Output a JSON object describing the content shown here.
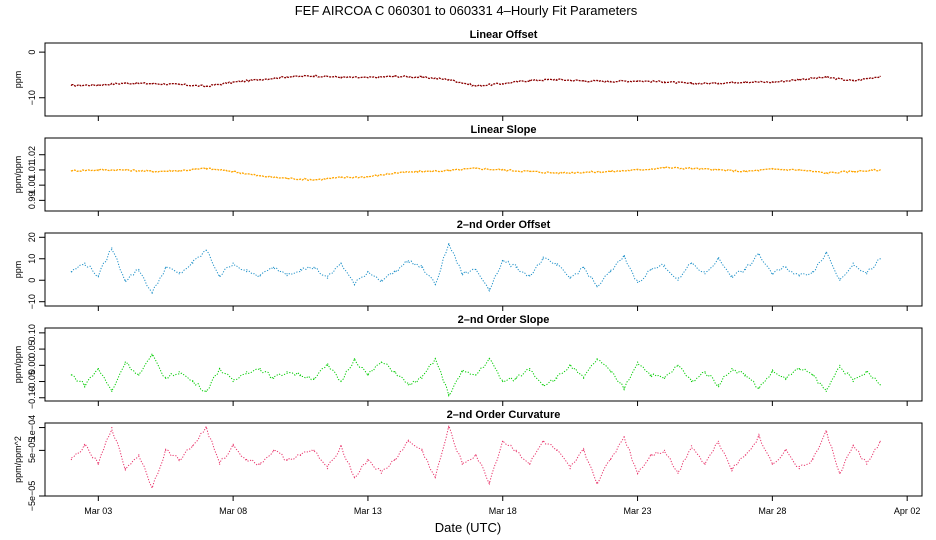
{
  "title": "FEF   AIRCOA C   060301 to 060331   4–Hourly Fit Parameters",
  "xlabel": "Date (UTC)",
  "x_ticks": [
    "Mar 03",
    "Mar 08",
    "Mar 13",
    "Mar 18",
    "Mar 23",
    "Mar 28",
    "Apr 02"
  ],
  "chart_data": [
    {
      "type": "line",
      "title": "Linear Offset",
      "ylabel": "ppm",
      "color": "#8b0000",
      "ylim": [
        -14,
        2
      ],
      "yticks": [
        0,
        -10
      ],
      "ytick_labels": [
        "0",
        "−10"
      ],
      "x_range": [
        "2006-03-01",
        "2006-04-02"
      ],
      "series": [
        {
          "x": [
            "2006-03-02",
            "2006-03-03",
            "2006-03-04",
            "2006-03-05",
            "2006-03-06",
            "2006-03-07",
            "2006-03-08",
            "2006-03-09",
            "2006-03-10",
            "2006-03-11",
            "2006-03-12",
            "2006-03-13",
            "2006-03-14",
            "2006-03-15",
            "2006-03-16",
            "2006-03-17",
            "2006-03-18",
            "2006-03-19",
            "2006-03-20",
            "2006-03-21",
            "2006-03-22",
            "2006-03-23",
            "2006-03-24",
            "2006-03-25",
            "2006-03-26",
            "2006-03-27",
            "2006-03-28",
            "2006-03-29",
            "2006-03-30",
            "2006-03-31",
            "2006-04-01"
          ],
          "values": [
            -7.3,
            -7.2,
            -6.8,
            -6.9,
            -7.1,
            -7.5,
            -6.6,
            -6.0,
            -5.4,
            -5.2,
            -5.5,
            -5.6,
            -5.3,
            -5.5,
            -6.0,
            -7.4,
            -6.9,
            -6.2,
            -6.0,
            -6.3,
            -6.4,
            -6.3,
            -6.5,
            -6.9,
            -6.8,
            -6.5,
            -6.6,
            -6.0,
            -5.5,
            -6.3,
            -5.3
          ]
        }
      ]
    },
    {
      "type": "line",
      "title": "Linear Slope",
      "ylabel": "ppm/ppm",
      "color": "#ffa500",
      "ylim": [
        0.983,
        1.031
      ],
      "yticks": [
        0.99,
        1.0,
        1.01,
        1.02
      ],
      "ytick_labels": [
        "0.99",
        "1.00",
        "1.01",
        "1.02"
      ],
      "x_range": [
        "2006-03-01",
        "2006-04-02"
      ],
      "series": [
        {
          "x": [
            "2006-03-02",
            "2006-03-03",
            "2006-03-04",
            "2006-03-05",
            "2006-03-06",
            "2006-03-07",
            "2006-03-08",
            "2006-03-09",
            "2006-03-10",
            "2006-03-11",
            "2006-03-12",
            "2006-03-13",
            "2006-03-14",
            "2006-03-15",
            "2006-03-16",
            "2006-03-17",
            "2006-03-18",
            "2006-03-19",
            "2006-03-20",
            "2006-03-21",
            "2006-03-22",
            "2006-03-23",
            "2006-03-24",
            "2006-03-25",
            "2006-03-26",
            "2006-03-27",
            "2006-03-28",
            "2006-03-29",
            "2006-03-30",
            "2006-03-31",
            "2006-04-01"
          ],
          "values": [
            1.0095,
            1.01,
            1.01,
            1.009,
            1.0095,
            1.011,
            1.009,
            1.006,
            1.0045,
            1.0035,
            1.005,
            1.0055,
            1.008,
            1.009,
            1.0095,
            1.011,
            1.01,
            1.009,
            1.008,
            1.0085,
            1.009,
            1.01,
            1.0115,
            1.011,
            1.01,
            1.009,
            1.0105,
            1.01,
            1.008,
            1.009,
            1.01
          ]
        }
      ]
    },
    {
      "type": "line",
      "title": "2–nd Order Offset",
      "ylabel": "ppm",
      "color": "#1e90c8",
      "ylim": [
        -12,
        22
      ],
      "yticks": [
        -10,
        0,
        10,
        20
      ],
      "ytick_labels": [
        "−10",
        "0",
        "10",
        "20"
      ],
      "x_range": [
        "2006-03-01",
        "2006-04-02"
      ],
      "series": [
        {
          "x": [
            "2006-03-02",
            "2006-03-02.5",
            "2006-03-03",
            "2006-03-03.5",
            "2006-03-04",
            "2006-03-04.5",
            "2006-03-05",
            "2006-03-05.5",
            "2006-03-06",
            "2006-03-06.5",
            "2006-03-07",
            "2006-03-07.5",
            "2006-03-08",
            "2006-03-08.5",
            "2006-03-09",
            "2006-03-09.5",
            "2006-03-10",
            "2006-03-10.5",
            "2006-03-11",
            "2006-03-11.5",
            "2006-03-12",
            "2006-03-12.5",
            "2006-03-13",
            "2006-03-13.5",
            "2006-03-14",
            "2006-03-14.5",
            "2006-03-15",
            "2006-03-15.5",
            "2006-03-16",
            "2006-03-16.5",
            "2006-03-17",
            "2006-03-17.5",
            "2006-03-18",
            "2006-03-18.5",
            "2006-03-19",
            "2006-03-19.5",
            "2006-03-20",
            "2006-03-20.5",
            "2006-03-21",
            "2006-03-21.5",
            "2006-03-22",
            "2006-03-22.5",
            "2006-03-23",
            "2006-03-23.5",
            "2006-03-24",
            "2006-03-24.5",
            "2006-03-25",
            "2006-03-25.5",
            "2006-03-26",
            "2006-03-26.5",
            "2006-03-27",
            "2006-03-27.5",
            "2006-03-28",
            "2006-03-28.5",
            "2006-03-29",
            "2006-03-29.5",
            "2006-03-30",
            "2006-03-30.5",
            "2006-03-31",
            "2006-03-31.5",
            "2006-04-01"
          ],
          "values": [
            4,
            8,
            2,
            15,
            0,
            5,
            -6,
            6,
            3,
            8,
            14,
            2,
            8,
            4,
            2,
            6,
            3,
            5,
            6,
            1,
            8,
            -2,
            4,
            0,
            4,
            9,
            6,
            -2,
            17,
            3,
            5,
            -4,
            9,
            6,
            2,
            10,
            7,
            1,
            6,
            -3,
            4,
            11,
            -1,
            5,
            7,
            0,
            8,
            3,
            10,
            2,
            5,
            12,
            3,
            6,
            2,
            4,
            13,
            0,
            8,
            3,
            10
          ]
        }
      ]
    },
    {
      "type": "line",
      "title": "2–nd Order Slope",
      "ylabel": "ppm/ppm",
      "color": "#00cc00",
      "ylim": [
        -0.11,
        0.115
      ],
      "yticks": [
        -0.1,
        -0.05,
        0.0,
        0.05,
        0.1
      ],
      "ytick_labels": [
        "−0.10",
        "−0.05",
        "0.00",
        "0.05",
        "0.10"
      ],
      "x_range": [
        "2006-03-01",
        "2006-04-02"
      ],
      "series": [
        {
          "x": [
            "2006-03-02",
            "2006-03-02.5",
            "2006-03-03",
            "2006-03-03.5",
            "2006-03-04",
            "2006-03-04.5",
            "2006-03-05",
            "2006-03-05.5",
            "2006-03-06",
            "2006-03-06.5",
            "2006-03-07",
            "2006-03-07.5",
            "2006-03-08",
            "2006-03-08.5",
            "2006-03-09",
            "2006-03-09.5",
            "2006-03-10",
            "2006-03-10.5",
            "2006-03-11",
            "2006-03-11.5",
            "2006-03-12",
            "2006-03-12.5",
            "2006-03-13",
            "2006-03-13.5",
            "2006-03-14",
            "2006-03-14.5",
            "2006-03-15",
            "2006-03-15.5",
            "2006-03-16",
            "2006-03-16.5",
            "2006-03-17",
            "2006-03-17.5",
            "2006-03-18",
            "2006-03-18.5",
            "2006-03-19",
            "2006-03-19.5",
            "2006-03-20",
            "2006-03-20.5",
            "2006-03-21",
            "2006-03-21.5",
            "2006-03-22",
            "2006-03-22.5",
            "2006-03-23",
            "2006-03-23.5",
            "2006-03-24",
            "2006-03-24.5",
            "2006-03-25",
            "2006-03-25.5",
            "2006-03-26",
            "2006-03-26.5",
            "2006-03-27",
            "2006-03-27.5",
            "2006-03-28",
            "2006-03-28.5",
            "2006-03-29",
            "2006-03-29.5",
            "2006-03-30",
            "2006-03-30.5",
            "2006-03-31",
            "2006-03-31.5",
            "2006-04-01"
          ],
          "values": [
            -0.03,
            -0.06,
            -0.01,
            -0.08,
            0.01,
            -0.03,
            0.03,
            -0.04,
            -0.02,
            -0.05,
            -0.08,
            -0.01,
            -0.05,
            -0.02,
            -0.01,
            -0.04,
            -0.02,
            -0.03,
            -0.04,
            0.0,
            -0.05,
            0.02,
            -0.03,
            0.01,
            -0.02,
            -0.06,
            -0.04,
            0.02,
            -0.09,
            -0.02,
            -0.03,
            0.02,
            -0.05,
            -0.04,
            -0.01,
            -0.06,
            -0.04,
            0.0,
            -0.04,
            0.02,
            -0.02,
            -0.07,
            0.01,
            -0.03,
            -0.04,
            0.0,
            -0.05,
            -0.02,
            -0.06,
            -0.01,
            -0.03,
            -0.07,
            -0.02,
            -0.04,
            -0.01,
            -0.03,
            -0.08,
            0.0,
            -0.05,
            -0.02,
            -0.06
          ]
        }
      ]
    },
    {
      "type": "line",
      "title": "2–nd Order Curvature",
      "ylabel": "ppm/ppm^2",
      "color": "#e8336a",
      "ylim": [
        -5e-05,
        0.00011
      ],
      "yticks": [
        -5e-05,
        5e-05,
        0.0001
      ],
      "ytick_labels": [
        "−5e−05",
        "5e−05",
        "1e−04"
      ],
      "x_range": [
        "2006-03-01",
        "2006-04-02"
      ],
      "series": [
        {
          "x": [
            "2006-03-02",
            "2006-03-02.5",
            "2006-03-03",
            "2006-03-03.5",
            "2006-03-04",
            "2006-03-04.5",
            "2006-03-05",
            "2006-03-05.5",
            "2006-03-06",
            "2006-03-06.5",
            "2006-03-07",
            "2006-03-07.5",
            "2006-03-08",
            "2006-03-08.5",
            "2006-03-09",
            "2006-03-09.5",
            "2006-03-10",
            "2006-03-10.5",
            "2006-03-11",
            "2006-03-11.5",
            "2006-03-12",
            "2006-03-12.5",
            "2006-03-13",
            "2006-03-13.5",
            "2006-03-14",
            "2006-03-14.5",
            "2006-03-15",
            "2006-03-15.5",
            "2006-03-16",
            "2006-03-16.5",
            "2006-03-17",
            "2006-03-17.5",
            "2006-03-18",
            "2006-03-18.5",
            "2006-03-19",
            "2006-03-19.5",
            "2006-03-20",
            "2006-03-20.5",
            "2006-03-21",
            "2006-03-21.5",
            "2006-03-22",
            "2006-03-22.5",
            "2006-03-23",
            "2006-03-23.5",
            "2006-03-24",
            "2006-03-24.5",
            "2006-03-25",
            "2006-03-25.5",
            "2006-03-26",
            "2006-03-26.5",
            "2006-03-27",
            "2006-03-27.5",
            "2006-03-28",
            "2006-03-28.5",
            "2006-03-29",
            "2006-03-29.5",
            "2006-03-30",
            "2006-03-30.5",
            "2006-03-31",
            "2006-03-31.5",
            "2006-04-01"
          ],
          "values": [
            3e-05,
            6e-05,
            2e-05,
            0.0001,
            1e-05,
            4e-05,
            -3e-05,
            5e-05,
            3e-05,
            6e-05,
            0.0001,
            2e-05,
            6e-05,
            3e-05,
            2e-05,
            5e-05,
            3e-05,
            4e-05,
            5e-05,
            1e-05,
            6e-05,
            -1e-05,
            3e-05,
            0.0,
            3e-05,
            7e-05,
            5e-05,
            -1e-05,
            0.0001,
            2e-05,
            4e-05,
            -2e-05,
            7e-05,
            5e-05,
            2e-05,
            7e-05,
            5e-05,
            1e-05,
            5e-05,
            -2e-05,
            3e-05,
            8e-05,
            0.0,
            4e-05,
            5e-05,
            0.0,
            6e-05,
            2e-05,
            7e-05,
            1e-05,
            4e-05,
            8e-05,
            2e-05,
            5e-05,
            1e-05,
            3e-05,
            9e-05,
            0.0,
            6e-05,
            2e-05,
            7e-05
          ]
        }
      ]
    }
  ]
}
